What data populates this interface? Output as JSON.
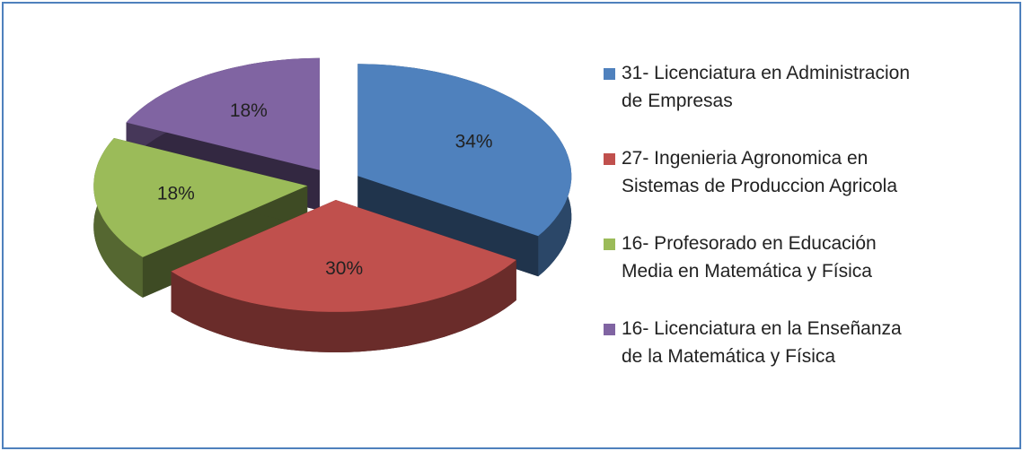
{
  "chart_data": {
    "type": "pie",
    "categories": [
      "31- Licenciatura en Administracion de Empresas",
      "27- Ingenieria Agronomica en Sistemas de Produccion Agricola",
      "16- Profesorado en Educación Media en Matemática y Física",
      "16- Licenciatura en la Enseñanza de la Matemática y Física"
    ],
    "values": [
      34,
      30,
      18,
      18
    ],
    "value_labels": [
      "34%",
      "30%",
      "18%",
      "18%"
    ],
    "colors": [
      "#4f81bd",
      "#c0504d",
      "#9bbb59",
      "#8064a2"
    ],
    "legend": "right"
  }
}
